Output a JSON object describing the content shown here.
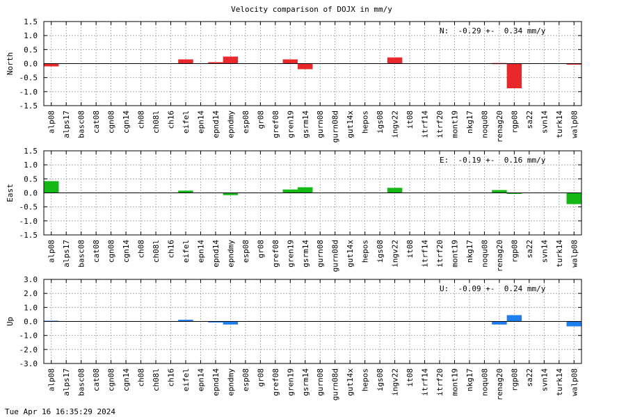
{
  "title": "Velocity comparison of DOJX in mm/y",
  "footer": "Tue Apr 16 16:35:29 2024",
  "chart_data": [
    {
      "type": "bar",
      "ylabel": "North",
      "annotation": "N:  -0.29 +-  0.34 mm/y",
      "ylim": [
        -1.5,
        1.5
      ],
      "yticks": [
        -1.5,
        -1.0,
        -0.5,
        0.0,
        0.5,
        1.0,
        1.5
      ],
      "color": "#e8282b",
      "grid": true,
      "categories": [
        "alp08",
        "alps17",
        "basc08",
        "cat08",
        "cgn08",
        "cgn14",
        "ch08",
        "ch08l",
        "ch16",
        "eifel",
        "epn14",
        "epnd14",
        "epndmy",
        "esp08",
        "gr08",
        "gref08",
        "gren19",
        "gsrm14",
        "gurn08",
        "gurn08d",
        "gut14x",
        "hepos",
        "igs08",
        "ingv22",
        "it08",
        "itrf14",
        "itrf20",
        "mont19",
        "nkg17",
        "noqu08",
        "renag20",
        "rgp08",
        "sa22",
        "svn14",
        "turk14",
        "walp08"
      ],
      "values": [
        -0.1,
        0,
        0,
        0,
        0,
        0,
        0,
        0,
        0,
        0.15,
        0,
        0.05,
        0.25,
        0,
        0,
        0,
        0.15,
        -0.2,
        0,
        0,
        0,
        0,
        0,
        0.22,
        0,
        0,
        0,
        0,
        0,
        0,
        0.02,
        -0.88,
        0,
        0,
        0,
        -0.02
      ]
    },
    {
      "type": "bar",
      "ylabel": "East",
      "annotation": "E:  -0.19 +-  0.16 mm/y",
      "ylim": [
        -1.5,
        1.5
      ],
      "yticks": [
        -1.5,
        -1.0,
        -0.5,
        0.0,
        0.5,
        1.0,
        1.5
      ],
      "color": "#14b814",
      "grid": true,
      "categories": [
        "alp08",
        "alps17",
        "basc08",
        "cat08",
        "cgn08",
        "cgn14",
        "ch08",
        "ch08l",
        "ch16",
        "eifel",
        "epn14",
        "epnd14",
        "epndmy",
        "esp08",
        "gr08",
        "gref08",
        "gren19",
        "gsrm14",
        "gurn08",
        "gurn08d",
        "gut14x",
        "hepos",
        "igs08",
        "ingv22",
        "it08",
        "itrf14",
        "itrf20",
        "mont19",
        "nkg17",
        "noqu08",
        "renag20",
        "rgp08",
        "sa22",
        "svn14",
        "turk14",
        "walp08"
      ],
      "values": [
        0.42,
        0,
        0,
        0,
        0,
        0,
        0,
        0,
        0,
        0.08,
        0,
        0,
        -0.08,
        0,
        0,
        0,
        0.12,
        0.2,
        0,
        0,
        0,
        0,
        0,
        0.18,
        0,
        0,
        0,
        0,
        0,
        0,
        0.1,
        -0.02,
        0,
        0,
        0,
        -0.4
      ]
    },
    {
      "type": "bar",
      "ylabel": "Up",
      "annotation": "U:  -0.09 +-  0.24 mm/y",
      "ylim": [
        -3.0,
        3.0
      ],
      "yticks": [
        -3.0,
        -2.0,
        -1.0,
        0.0,
        1.0,
        2.0,
        3.0
      ],
      "color": "#1e7ff0",
      "grid": true,
      "categories": [
        "alp08",
        "alps17",
        "basc08",
        "cat08",
        "cgn08",
        "cgn14",
        "ch08",
        "ch08l",
        "ch16",
        "eifel",
        "epn14",
        "epnd14",
        "epndmy",
        "esp08",
        "gr08",
        "gref08",
        "gren19",
        "gsrm14",
        "gurn08",
        "gurn08d",
        "gut14x",
        "hepos",
        "igs08",
        "ingv22",
        "it08",
        "itrf14",
        "itrf20",
        "mont19",
        "nkg17",
        "noqu08",
        "renag20",
        "rgp08",
        "sa22",
        "svn14",
        "turk14",
        "walp08"
      ],
      "values": [
        0.05,
        0,
        0,
        0,
        0,
        0,
        0,
        0,
        0,
        0.12,
        0,
        -0.05,
        -0.22,
        0,
        0,
        0,
        0,
        0,
        0,
        0,
        0,
        0,
        0,
        0,
        0,
        0,
        0,
        0,
        0,
        0,
        -0.22,
        0.45,
        0,
        0,
        0,
        -0.35
      ]
    }
  ]
}
